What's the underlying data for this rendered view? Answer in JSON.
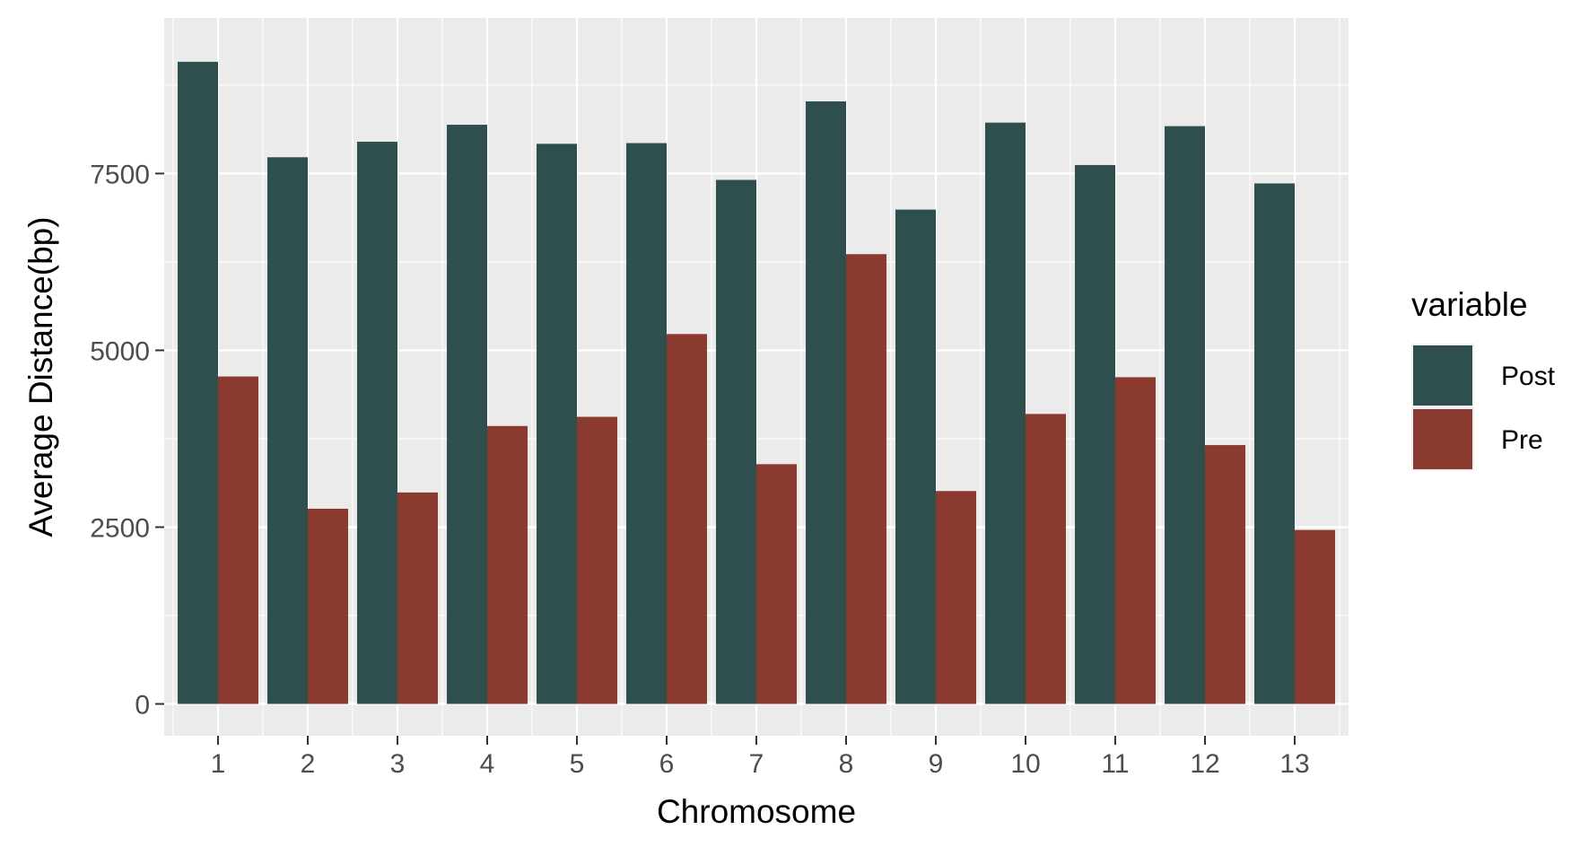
{
  "chart_data": {
    "type": "bar",
    "title": "",
    "xlabel": "Chromosome",
    "ylabel": "Average Distance(bp)",
    "categories": [
      "1",
      "2",
      "3",
      "4",
      "5",
      "6",
      "7",
      "8",
      "9",
      "10",
      "11",
      "12",
      "13"
    ],
    "series": [
      {
        "name": "Post",
        "values": [
          9080,
          7730,
          7950,
          8190,
          7920,
          7930,
          7410,
          8520,
          6990,
          8220,
          7620,
          8170,
          7360
        ]
      },
      {
        "name": "Pre",
        "values": [
          4630,
          2760,
          2990,
          3930,
          4060,
          5230,
          3390,
          6360,
          3010,
          4100,
          4620,
          3660,
          2460
        ]
      }
    ],
    "ylim": [
      -450,
      9700
    ],
    "yticks": [
      0,
      2500,
      5000,
      7500
    ],
    "ytick_labels": [
      "0",
      "2500",
      "5000",
      "7500"
    ],
    "grid": true,
    "legend": {
      "title": "variable",
      "position": "right"
    },
    "colors": {
      "Post": "#2f4f4f",
      "Pre": "#8b3a2f",
      "panel_background": "#ebebeb",
      "grid": "#ffffff"
    }
  }
}
